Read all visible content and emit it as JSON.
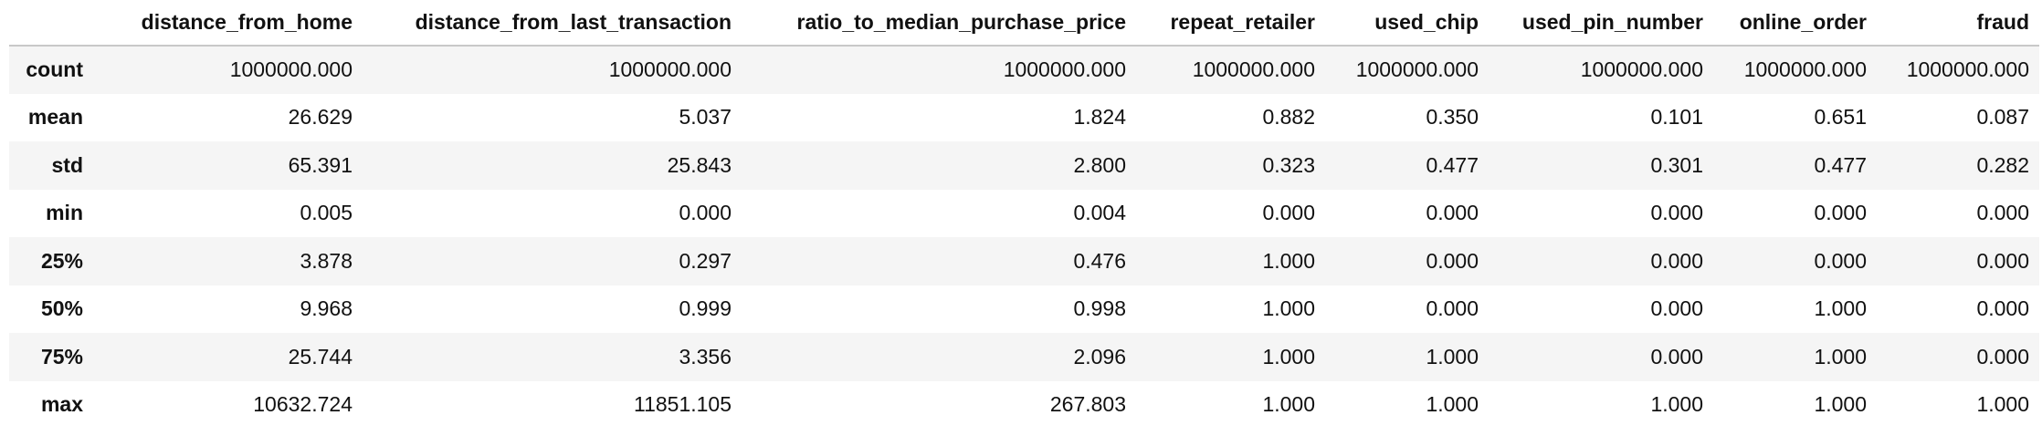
{
  "table": {
    "corner": "",
    "columns": [
      "distance_from_home",
      "distance_from_last_transaction",
      "ratio_to_median_purchase_price",
      "repeat_retailer",
      "used_chip",
      "used_pin_number",
      "online_order",
      "fraud"
    ],
    "rows": [
      {
        "label": "count",
        "values": [
          "1000000.000",
          "1000000.000",
          "1000000.000",
          "1000000.000",
          "1000000.000",
          "1000000.000",
          "1000000.000",
          "1000000.000"
        ]
      },
      {
        "label": "mean",
        "values": [
          "26.629",
          "5.037",
          "1.824",
          "0.882",
          "0.350",
          "0.101",
          "0.651",
          "0.087"
        ]
      },
      {
        "label": "std",
        "values": [
          "65.391",
          "25.843",
          "2.800",
          "0.323",
          "0.477",
          "0.301",
          "0.477",
          "0.282"
        ]
      },
      {
        "label": "min",
        "values": [
          "0.005",
          "0.000",
          "0.004",
          "0.000",
          "0.000",
          "0.000",
          "0.000",
          "0.000"
        ]
      },
      {
        "label": "25%",
        "values": [
          "3.878",
          "0.297",
          "0.476",
          "1.000",
          "0.000",
          "0.000",
          "0.000",
          "0.000"
        ]
      },
      {
        "label": "50%",
        "values": [
          "9.968",
          "0.999",
          "0.998",
          "1.000",
          "0.000",
          "0.000",
          "1.000",
          "0.000"
        ]
      },
      {
        "label": "75%",
        "values": [
          "25.744",
          "3.356",
          "2.096",
          "1.000",
          "1.000",
          "0.000",
          "1.000",
          "0.000"
        ]
      },
      {
        "label": "max",
        "values": [
          "10632.724",
          "11851.105",
          "267.803",
          "1.000",
          "1.000",
          "1.000",
          "1.000",
          "1.000"
        ]
      }
    ]
  }
}
